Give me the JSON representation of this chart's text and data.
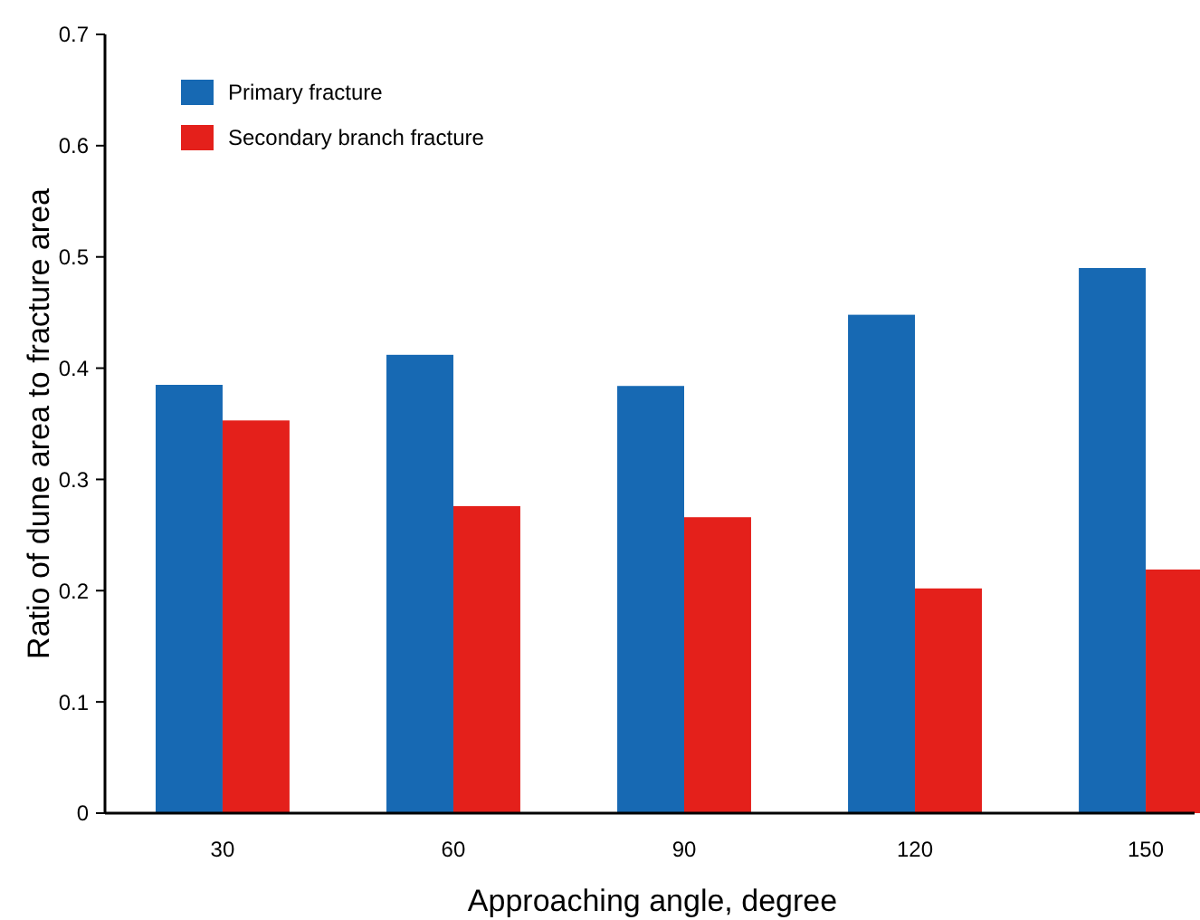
{
  "chart_data": {
    "type": "bar",
    "xlabel": "Approaching angle, degree",
    "ylabel": "Ratio of dune area to fracture area",
    "categories": [
      "30",
      "60",
      "90",
      "120",
      "150"
    ],
    "series": [
      {
        "name": "Primary fracture",
        "color": "#1769b3",
        "values": [
          0.385,
          0.412,
          0.384,
          0.448,
          0.49
        ]
      },
      {
        "name": "Secondary branch fracture",
        "color": "#e4201b",
        "values": [
          0.353,
          0.276,
          0.266,
          0.202,
          0.219
        ]
      }
    ],
    "ylim": [
      0,
      0.7
    ],
    "yticks": [
      0,
      0.1,
      0.2,
      0.3,
      0.4,
      0.5,
      0.6,
      0.7
    ],
    "legend": "top left",
    "grid": false
  }
}
